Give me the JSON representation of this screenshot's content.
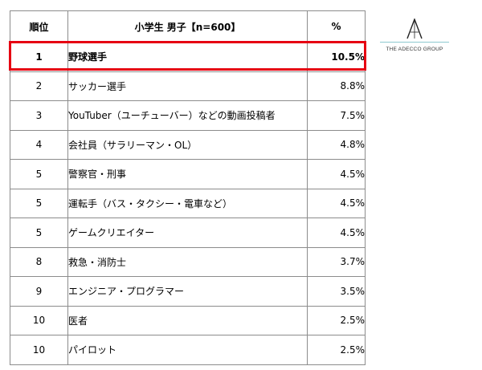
{
  "chart_data": {
    "type": "table",
    "header": {
      "rank": "順位",
      "title": "小学生 男子【n=600】",
      "pct": "%"
    },
    "rows": [
      {
        "rank": "1",
        "job": "野球選手",
        "pct": "10.5%",
        "value": 10.5
      },
      {
        "rank": "2",
        "job": "サッカー選手",
        "pct": "8.8%",
        "value": 8.8
      },
      {
        "rank": "3",
        "job": "YouTuber（ユーチューバー）などの動画投稿者",
        "pct": "7.5%",
        "value": 7.5
      },
      {
        "rank": "4",
        "job": "会社員（サラリーマン・OL）",
        "pct": "4.8%",
        "value": 4.8
      },
      {
        "rank": "5",
        "job": "警察官・刑事",
        "pct": "4.5%",
        "value": 4.5
      },
      {
        "rank": "5",
        "job": "運転手（バス・タクシー・電車など）",
        "pct": "4.5%",
        "value": 4.5
      },
      {
        "rank": "5",
        "job": "ゲームクリエイター",
        "pct": "4.5%",
        "value": 4.5
      },
      {
        "rank": "8",
        "job": "救急・消防士",
        "pct": "3.7%",
        "value": 3.7
      },
      {
        "rank": "9",
        "job": "エンジニア・プログラマー",
        "pct": "3.5%",
        "value": 3.5
      },
      {
        "rank": "10",
        "job": "医者",
        "pct": "2.5%",
        "value": 2.5
      },
      {
        "rank": "10",
        "job": "パイロット",
        "pct": "2.5%",
        "value": 2.5
      }
    ],
    "highlighted_rank": "1",
    "highlight_color": "#e60012"
  },
  "logo": {
    "text": "THE ADECCO GROUP",
    "accent_color": "#8ec9d0"
  }
}
